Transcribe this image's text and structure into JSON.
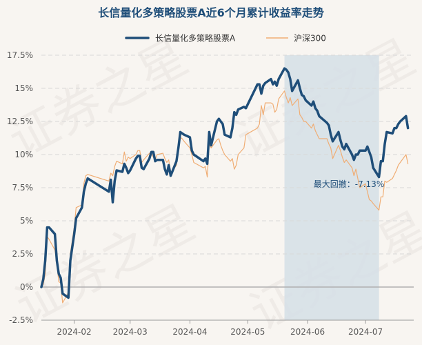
{
  "chart_data": {
    "type": "line",
    "title": "长信量化多策略股票A近6个月累计收益率走势",
    "watermark": "证券之星",
    "y_axis": {
      "min": -2.5,
      "max": 17.5,
      "step": 2.5,
      "tick_labels": [
        "-2.5%",
        "0%",
        "2.5%",
        "5%",
        "7.5%",
        "10%",
        "12.5%",
        "15%",
        "17.5%"
      ]
    },
    "x_axis": {
      "start": "2024-01-15",
      "end": "2024-07-26",
      "ticks": [
        {
          "label": "2024-02",
          "date": "2024-02-01"
        },
        {
          "label": "2024-03",
          "date": "2024-03-01"
        },
        {
          "label": "2024-04",
          "date": "2024-04-01"
        },
        {
          "label": "2024-05",
          "date": "2024-05-01"
        },
        {
          "label": "2024-06",
          "date": "2024-06-01"
        },
        {
          "label": "2024-07",
          "date": "2024-07-01"
        }
      ]
    },
    "drawdown": {
      "start": "2024-05-20",
      "end": "2024-07-08",
      "label": "最大回撤：-7.13%",
      "color": "#d5dfe6"
    },
    "series": [
      {
        "name": "长信量化多策略股票A",
        "color": "#1f4e79",
        "width": 3.5,
        "points": [
          [
            "2024-01-15",
            0.0
          ],
          [
            "2024-01-16",
            0.6
          ],
          [
            "2024-01-17",
            2.0
          ],
          [
            "2024-01-18",
            4.5
          ],
          [
            "2024-01-19",
            4.5
          ],
          [
            "2024-01-22",
            4.0
          ],
          [
            "2024-01-23",
            2.0
          ],
          [
            "2024-01-24",
            1.0
          ],
          [
            "2024-01-25",
            0.7
          ],
          [
            "2024-01-26",
            -0.5
          ],
          [
            "2024-01-29",
            -0.8
          ],
          [
            "2024-01-30",
            2.0
          ],
          [
            "2024-01-31",
            3.0
          ],
          [
            "2024-02-01",
            4.0
          ],
          [
            "2024-02-02",
            5.2
          ],
          [
            "2024-02-05",
            6.0
          ],
          [
            "2024-02-06",
            7.2
          ],
          [
            "2024-02-07",
            7.8
          ],
          [
            "2024-02-08",
            8.2
          ],
          [
            "2024-02-19",
            7.2
          ],
          [
            "2024-02-20",
            8.1
          ],
          [
            "2024-02-21",
            6.4
          ],
          [
            "2024-02-22",
            8.0
          ],
          [
            "2024-02-23",
            8.8
          ],
          [
            "2024-02-26",
            8.7
          ],
          [
            "2024-02-27",
            9.3
          ],
          [
            "2024-02-28",
            9.0
          ],
          [
            "2024-02-29",
            8.6
          ],
          [
            "2024-03-01",
            8.8
          ],
          [
            "2024-03-04",
            9.7
          ],
          [
            "2024-03-05",
            9.9
          ],
          [
            "2024-03-06",
            9.9
          ],
          [
            "2024-03-07",
            9.0
          ],
          [
            "2024-03-08",
            8.9
          ],
          [
            "2024-03-11",
            9.7
          ],
          [
            "2024-03-12",
            10.2
          ],
          [
            "2024-03-13",
            10.2
          ],
          [
            "2024-03-14",
            9.5
          ],
          [
            "2024-03-15",
            9.6
          ],
          [
            "2024-03-18",
            9.6
          ],
          [
            "2024-03-19",
            8.9
          ],
          [
            "2024-03-20",
            8.5
          ],
          [
            "2024-03-21",
            9.2
          ],
          [
            "2024-03-22",
            8.4
          ],
          [
            "2024-03-25",
            9.5
          ],
          [
            "2024-03-26",
            10.5
          ],
          [
            "2024-03-27",
            11.7
          ],
          [
            "2024-03-28",
            11.6
          ],
          [
            "2024-03-29",
            11.5
          ],
          [
            "2024-04-01",
            11.3
          ],
          [
            "2024-04-02",
            10.3
          ],
          [
            "2024-04-03",
            10.0
          ],
          [
            "2024-04-08",
            9.5
          ],
          [
            "2024-04-09",
            9.7
          ],
          [
            "2024-04-10",
            9.3
          ],
          [
            "2024-04-11",
            11.7
          ],
          [
            "2024-04-12",
            10.7
          ],
          [
            "2024-04-15",
            12.5
          ],
          [
            "2024-04-16",
            12.7
          ],
          [
            "2024-04-17",
            12.5
          ],
          [
            "2024-04-18",
            12.3
          ],
          [
            "2024-04-19",
            11.5
          ],
          [
            "2024-04-22",
            11.3
          ],
          [
            "2024-04-23",
            12.0
          ],
          [
            "2024-04-24",
            13.2
          ],
          [
            "2024-04-25",
            13.0
          ],
          [
            "2024-04-26",
            13.4
          ],
          [
            "2024-04-29",
            13.6
          ],
          [
            "2024-04-30",
            13.5
          ],
          [
            "2024-05-06",
            15.3
          ],
          [
            "2024-05-07",
            15.3
          ],
          [
            "2024-05-08",
            14.6
          ],
          [
            "2024-05-09",
            15.2
          ],
          [
            "2024-05-10",
            15.4
          ],
          [
            "2024-05-13",
            15.7
          ],
          [
            "2024-05-14",
            15.3
          ],
          [
            "2024-05-15",
            15.5
          ],
          [
            "2024-05-16",
            15.2
          ],
          [
            "2024-05-17",
            15.7
          ],
          [
            "2024-05-20",
            16.5
          ],
          [
            "2024-05-21",
            16.4
          ],
          [
            "2024-05-22",
            16.2
          ],
          [
            "2024-05-23",
            15.7
          ],
          [
            "2024-05-24",
            14.8
          ],
          [
            "2024-05-27",
            15.6
          ],
          [
            "2024-05-28",
            15.0
          ],
          [
            "2024-05-29",
            14.5
          ],
          [
            "2024-05-30",
            14.4
          ],
          [
            "2024-05-31",
            14.1
          ],
          [
            "2024-06-03",
            13.7
          ],
          [
            "2024-06-04",
            14.0
          ],
          [
            "2024-06-05",
            13.5
          ],
          [
            "2024-06-06",
            13.3
          ],
          [
            "2024-06-07",
            12.9
          ],
          [
            "2024-06-11",
            12.4
          ],
          [
            "2024-06-12",
            12.2
          ],
          [
            "2024-06-13",
            11.5
          ],
          [
            "2024-06-14",
            11.0
          ],
          [
            "2024-06-17",
            11.7
          ],
          [
            "2024-06-18",
            11.1
          ],
          [
            "2024-06-19",
            10.6
          ],
          [
            "2024-06-20",
            10.4
          ],
          [
            "2024-06-21",
            10.8
          ],
          [
            "2024-06-24",
            10.0
          ],
          [
            "2024-06-25",
            9.6
          ],
          [
            "2024-06-26",
            10.0
          ],
          [
            "2024-06-27",
            10.0
          ],
          [
            "2024-06-28",
            10.3
          ],
          [
            "2024-07-01",
            10.3
          ],
          [
            "2024-07-02",
            10.6
          ],
          [
            "2024-07-03",
            10.2
          ],
          [
            "2024-07-04",
            9.8
          ],
          [
            "2024-07-05",
            9.0
          ],
          [
            "2024-07-08",
            8.3
          ],
          [
            "2024-07-09",
            9.5
          ],
          [
            "2024-07-10",
            9.5
          ],
          [
            "2024-07-11",
            10.8
          ],
          [
            "2024-07-12",
            11.7
          ],
          [
            "2024-07-15",
            11.6
          ],
          [
            "2024-07-16",
            12.0
          ],
          [
            "2024-07-17",
            12.0
          ],
          [
            "2024-07-18",
            12.3
          ],
          [
            "2024-07-19",
            12.5
          ],
          [
            "2024-07-22",
            12.9
          ],
          [
            "2024-07-23",
            12.0
          ]
        ]
      },
      {
        "name": "沪深300",
        "color": "#f0ad74",
        "width": 1.2,
        "points": [
          [
            "2024-01-15",
            0.0
          ],
          [
            "2024-01-16",
            0.2
          ],
          [
            "2024-01-17",
            1.0
          ],
          [
            "2024-01-18",
            3.8
          ],
          [
            "2024-01-19",
            3.6
          ],
          [
            "2024-01-22",
            2.8
          ],
          [
            "2024-01-23",
            1.8
          ],
          [
            "2024-01-24",
            0.4
          ],
          [
            "2024-01-25",
            0.3
          ],
          [
            "2024-01-26",
            -1.2
          ],
          [
            "2024-01-29",
            -0.4
          ],
          [
            "2024-01-30",
            2.5
          ],
          [
            "2024-01-31",
            3.5
          ],
          [
            "2024-02-01",
            4.5
          ],
          [
            "2024-02-02",
            6.0
          ],
          [
            "2024-02-05",
            6.2
          ],
          [
            "2024-02-06",
            7.8
          ],
          [
            "2024-02-07",
            8.4
          ],
          [
            "2024-02-08",
            8.5
          ],
          [
            "2024-02-19",
            8.0
          ],
          [
            "2024-02-20",
            8.6
          ],
          [
            "2024-02-21",
            8.4
          ],
          [
            "2024-02-22",
            9.1
          ],
          [
            "2024-02-23",
            9.5
          ],
          [
            "2024-02-26",
            9.3
          ],
          [
            "2024-02-27",
            10.2
          ],
          [
            "2024-02-28",
            9.5
          ],
          [
            "2024-02-29",
            9.8
          ],
          [
            "2024-03-01",
            9.7
          ],
          [
            "2024-03-04",
            10.0
          ],
          [
            "2024-03-05",
            10.3
          ],
          [
            "2024-03-06",
            10.3
          ],
          [
            "2024-03-07",
            9.4
          ],
          [
            "2024-03-08",
            9.6
          ],
          [
            "2024-03-11",
            10.1
          ],
          [
            "2024-03-12",
            10.1
          ],
          [
            "2024-03-13",
            9.8
          ],
          [
            "2024-03-14",
            9.6
          ],
          [
            "2024-03-15",
            10.0
          ],
          [
            "2024-03-18",
            10.1
          ],
          [
            "2024-03-19",
            9.7
          ],
          [
            "2024-03-20",
            9.4
          ],
          [
            "2024-03-21",
            9.6
          ],
          [
            "2024-03-22",
            8.6
          ],
          [
            "2024-03-25",
            9.2
          ],
          [
            "2024-03-26",
            10.3
          ],
          [
            "2024-03-27",
            11.3
          ],
          [
            "2024-03-28",
            11.2
          ],
          [
            "2024-03-29",
            11.0
          ],
          [
            "2024-04-01",
            10.5
          ],
          [
            "2024-04-02",
            10.0
          ],
          [
            "2024-04-03",
            9.4
          ],
          [
            "2024-04-08",
            9.0
          ],
          [
            "2024-04-09",
            9.1
          ],
          [
            "2024-04-10",
            8.3
          ],
          [
            "2024-04-11",
            10.8
          ],
          [
            "2024-04-12",
            10.5
          ],
          [
            "2024-04-15",
            11.1
          ],
          [
            "2024-04-16",
            11.2
          ],
          [
            "2024-04-17",
            10.7
          ],
          [
            "2024-04-18",
            10.3
          ],
          [
            "2024-04-19",
            10.0
          ],
          [
            "2024-04-22",
            9.5
          ],
          [
            "2024-04-23",
            9.7
          ],
          [
            "2024-04-24",
            8.9
          ],
          [
            "2024-04-25",
            9.2
          ],
          [
            "2024-04-26",
            10.0
          ],
          [
            "2024-04-29",
            10.5
          ],
          [
            "2024-04-30",
            11.5
          ],
          [
            "2024-05-06",
            12.0
          ],
          [
            "2024-05-07",
            12.3
          ],
          [
            "2024-05-08",
            13.7
          ],
          [
            "2024-05-09",
            13.0
          ],
          [
            "2024-05-10",
            13.9
          ],
          [
            "2024-05-13",
            13.9
          ],
          [
            "2024-05-14",
            13.8
          ],
          [
            "2024-05-15",
            13.2
          ],
          [
            "2024-05-16",
            13.4
          ],
          [
            "2024-05-17",
            14.2
          ],
          [
            "2024-05-20",
            14.8
          ],
          [
            "2024-05-21",
            14.3
          ],
          [
            "2024-05-22",
            13.9
          ],
          [
            "2024-05-23",
            14.3
          ],
          [
            "2024-05-24",
            13.7
          ],
          [
            "2024-05-27",
            14.2
          ],
          [
            "2024-05-28",
            13.0
          ],
          [
            "2024-05-29",
            12.8
          ],
          [
            "2024-05-30",
            12.5
          ],
          [
            "2024-05-31",
            12.5
          ],
          [
            "2024-06-03",
            12.0
          ],
          [
            "2024-06-04",
            12.3
          ],
          [
            "2024-06-05",
            11.8
          ],
          [
            "2024-06-06",
            11.5
          ],
          [
            "2024-06-07",
            11.2
          ],
          [
            "2024-06-11",
            11.2
          ],
          [
            "2024-06-12",
            10.8
          ],
          [
            "2024-06-13",
            10.5
          ],
          [
            "2024-06-14",
            9.7
          ],
          [
            "2024-06-17",
            10.7
          ],
          [
            "2024-06-18",
            10.3
          ],
          [
            "2024-06-19",
            9.8
          ],
          [
            "2024-06-20",
            9.4
          ],
          [
            "2024-06-21",
            9.6
          ],
          [
            "2024-06-24",
            9.0
          ],
          [
            "2024-06-25",
            8.4
          ],
          [
            "2024-06-26",
            8.9
          ],
          [
            "2024-06-27",
            8.2
          ],
          [
            "2024-06-28",
            7.5
          ],
          [
            "2024-07-01",
            7.8
          ],
          [
            "2024-07-02",
            7.2
          ],
          [
            "2024-07-03",
            6.6
          ],
          [
            "2024-07-04",
            6.5
          ],
          [
            "2024-07-05",
            6.3
          ],
          [
            "2024-07-08",
            5.8
          ],
          [
            "2024-07-09",
            6.8
          ],
          [
            "2024-07-10",
            6.8
          ],
          [
            "2024-07-11",
            8.0
          ],
          [
            "2024-07-12",
            7.9
          ],
          [
            "2024-07-15",
            8.2
          ],
          [
            "2024-07-16",
            8.5
          ],
          [
            "2024-07-17",
            8.8
          ],
          [
            "2024-07-18",
            9.2
          ],
          [
            "2024-07-19",
            9.4
          ],
          [
            "2024-07-22",
            10.0
          ],
          [
            "2024-07-23",
            9.3
          ]
        ]
      }
    ]
  }
}
